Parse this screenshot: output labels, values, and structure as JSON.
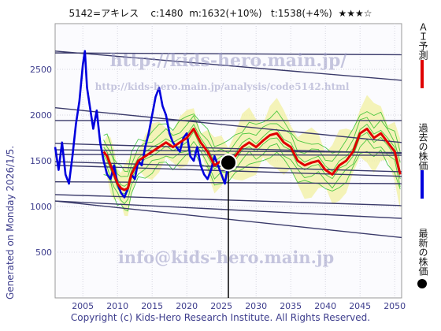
{
  "header": {
    "code_name": "5142=アキレス",
    "current": "c:1480",
    "mid": "m:1632(+10%)",
    "target": "t:1538(+4%)",
    "stars": "★★★☆"
  },
  "generated": "Generated on Monday 2026/1/5.",
  "copyright": "Copyright (c) Kids-Hero Research Institute. All Rights Reserved.",
  "watermarks": {
    "top": "http://kids-hero.main.jp/",
    "mid": "http://kids-hero.main.jp/analysis/code5142.html",
    "bottom": "info@kids-hero.main.jp"
  },
  "legend": {
    "ai_forecast": "ＡＩ予測",
    "past_price": "過去の株価",
    "latest_price": "最新の株価"
  },
  "colors": {
    "ai_forecast": "#e00000",
    "past_price": "#0000dd",
    "latest_price": "#000000",
    "band": "#22bb22",
    "band_fill": "#f2f0a0",
    "trend_lines": "#3a3a6a",
    "axis_text": "#3c3c8c"
  },
  "chart_data": {
    "type": "line",
    "xlim": [
      2001,
      2051
    ],
    "ylim": [
      0,
      3000
    ],
    "x_ticks": [
      2005,
      2010,
      2015,
      2020,
      2025,
      2030,
      2035,
      2040,
      2045,
      2050
    ],
    "y_ticks": [
      500,
      1000,
      1500,
      2000,
      2500
    ],
    "grid": true,
    "latest_point": {
      "x": 2026.0,
      "y": 1480
    },
    "series": [
      {
        "name": "過去の株価",
        "x": [
          2001.0,
          2001.5,
          2002.0,
          2002.5,
          2003.0,
          2003.5,
          2004.0,
          2004.5,
          2005.0,
          2005.3,
          2005.6,
          2006.0,
          2006.5,
          2007.0,
          2007.5,
          2008.0,
          2008.5,
          2009.0,
          2009.5,
          2010.0,
          2010.5,
          2011.0,
          2011.5,
          2012.0,
          2012.5,
          2013.0,
          2013.5,
          2014.0,
          2014.5,
          2015.0,
          2015.5,
          2016.0,
          2016.5,
          2017.0,
          2017.5,
          2018.0,
          2018.5,
          2019.0,
          2019.5,
          2020.0,
          2020.5,
          2021.0,
          2021.5,
          2022.0,
          2022.5,
          2023.0,
          2023.5,
          2024.0,
          2024.5,
          2025.0,
          2025.5,
          2026.0
        ],
        "y": [
          1650,
          1400,
          1700,
          1350,
          1250,
          1550,
          1900,
          2150,
          2550,
          2700,
          2300,
          2100,
          1850,
          2050,
          1700,
          1500,
          1350,
          1300,
          1450,
          1250,
          1150,
          1100,
          1200,
          1350,
          1300,
          1500,
          1450,
          1650,
          1800,
          2000,
          2200,
          2300,
          2100,
          2000,
          1800,
          1700,
          1650,
          1600,
          1750,
          1800,
          1550,
          1500,
          1650,
          1450,
          1350,
          1300,
          1400,
          1550,
          1450,
          1350,
          1250,
          1480
        ]
      },
      {
        "name": "ＡＩ予測",
        "x": [
          2008.0,
          2008.5,
          2009.0,
          2009.5,
          2010.0,
          2010.5,
          2011.0,
          2011.5,
          2012.0,
          2013.0,
          2014.0,
          2015.0,
          2016.0,
          2017.0,
          2018.0,
          2019.0,
          2020.0,
          2021.0,
          2022.0,
          2023.0,
          2024.0,
          2025.0,
          2026.0,
          2027.0,
          2028.0,
          2029.0,
          2030.0,
          2031.0,
          2032.0,
          2033.0,
          2034.0,
          2035.0,
          2036.0,
          2037.0,
          2038.0,
          2039.0,
          2040.0,
          2041.0,
          2042.0,
          2043.0,
          2044.0,
          2045.0,
          2046.0,
          2047.0,
          2048.0,
          2049.0,
          2050.0,
          2050.8
        ],
        "y": [
          1600,
          1550,
          1450,
          1350,
          1250,
          1200,
          1180,
          1200,
          1350,
          1500,
          1550,
          1600,
          1650,
          1700,
          1650,
          1700,
          1750,
          1850,
          1700,
          1600,
          1450,
          1500,
          1480,
          1550,
          1650,
          1700,
          1650,
          1720,
          1780,
          1800,
          1700,
          1650,
          1500,
          1450,
          1480,
          1500,
          1400,
          1350,
          1450,
          1500,
          1600,
          1800,
          1850,
          1750,
          1800,
          1700,
          1600,
          1350
        ]
      }
    ]
  }
}
